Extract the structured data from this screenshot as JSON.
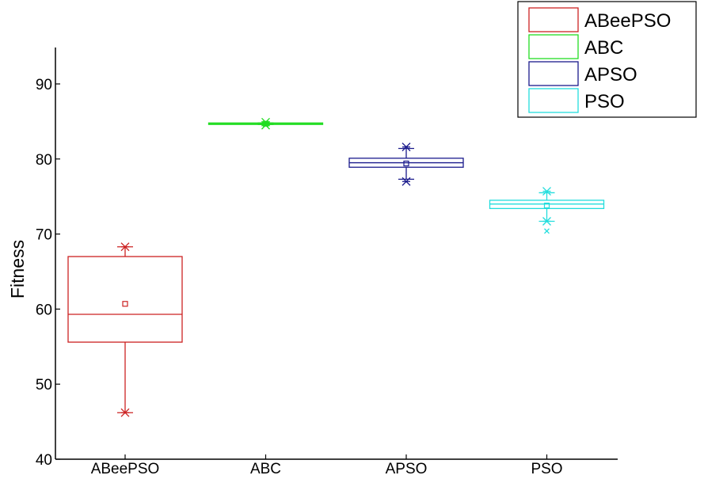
{
  "chart_data": {
    "type": "box",
    "title": "",
    "xlabel": "",
    "ylabel": "Fitness",
    "ylim": [
      40,
      95
    ],
    "yticks": [
      40,
      50,
      60,
      70,
      80,
      90
    ],
    "grid": false,
    "legend_position": "top-right",
    "categories": [
      "ABeePSO",
      "ABC",
      "APSO",
      "PSO"
    ],
    "series": [
      {
        "name": "ABeePSO",
        "color": "#cc2222",
        "q1": 55.6,
        "median": 59.3,
        "q3": 67.0,
        "mean": 60.7,
        "whisker_low": 46.2,
        "whisker_high": 68.3,
        "min": 46.2,
        "max": 68.3,
        "outliers": []
      },
      {
        "name": "ABC",
        "color": "#22dd22",
        "q1": 84.6,
        "median": 84.7,
        "q3": 84.8,
        "mean": 84.7,
        "whisker_low": 84.6,
        "whisker_high": 84.8,
        "min": 84.5,
        "max": 84.9,
        "outliers": []
      },
      {
        "name": "APSO",
        "color": "#1a1a8c",
        "q1": 78.9,
        "median": 79.5,
        "q3": 80.1,
        "mean": 79.4,
        "whisker_low": 77.3,
        "whisker_high": 81.4,
        "min": 77.0,
        "max": 81.6,
        "outliers": []
      },
      {
        "name": "PSO",
        "color": "#22dddd",
        "q1": 73.4,
        "median": 74.0,
        "q3": 74.5,
        "mean": 73.8,
        "whisker_low": 71.7,
        "whisker_high": 75.5,
        "min": 71.7,
        "max": 75.7,
        "outliers": [
          70.4
        ]
      }
    ]
  }
}
